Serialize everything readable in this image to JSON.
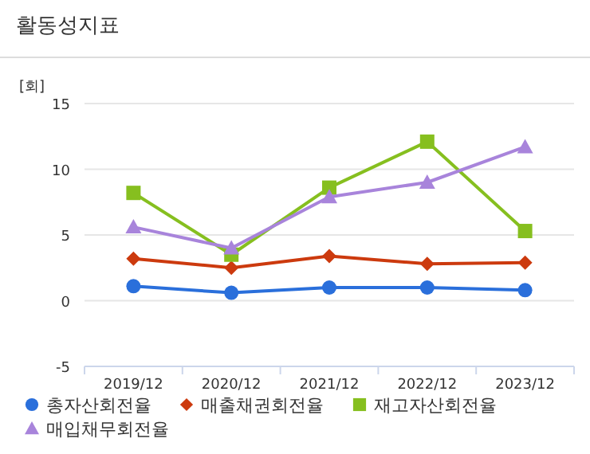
{
  "chart_data": {
    "type": "line",
    "title": "활동성지표",
    "ylabel": "[회]",
    "categories": [
      "2019/12",
      "2020/12",
      "2021/12",
      "2022/12",
      "2023/12"
    ],
    "ylim": [
      -5,
      15
    ],
    "yticks": [
      -5,
      0,
      5,
      10,
      15
    ],
    "grid": "y",
    "legend": "bottom",
    "line_style": "solid",
    "series": [
      {
        "name": "총자산회전율",
        "color": "#2a6fdb",
        "marker": "circle",
        "values": [
          1.1,
          0.6,
          1.0,
          1.0,
          0.8
        ]
      },
      {
        "name": "매출채권회전율",
        "color": "#cc3a0e",
        "marker": "diamond",
        "values": [
          3.2,
          2.5,
          3.4,
          2.8,
          2.9
        ]
      },
      {
        "name": "재고자산회전율",
        "color": "#86bf1f",
        "marker": "square",
        "values": [
          8.2,
          3.5,
          8.6,
          12.1,
          5.3
        ]
      },
      {
        "name": "매입채무회전율",
        "color": "#a884db",
        "marker": "triangle",
        "values": [
          5.6,
          4.0,
          7.9,
          9.0,
          11.7
        ]
      }
    ]
  }
}
